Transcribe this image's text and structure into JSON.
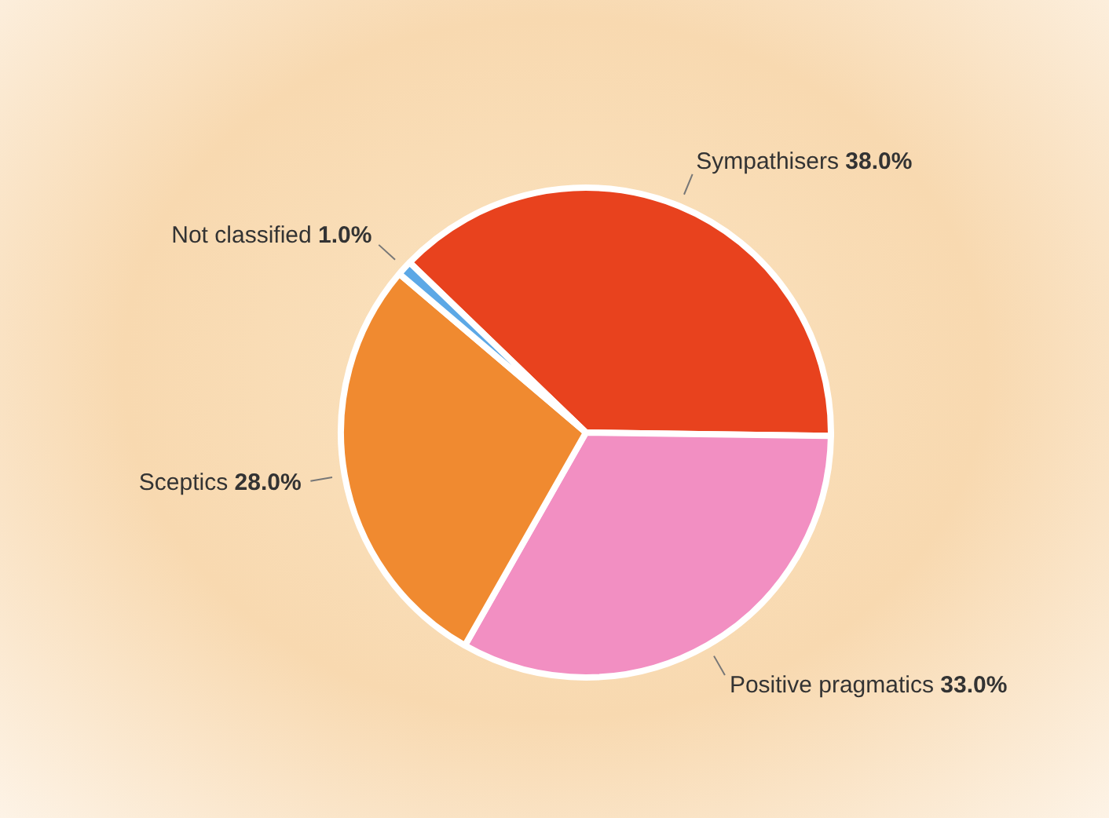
{
  "chart_data": {
    "type": "pie",
    "categories": [
      "Sympathisers",
      "Positive pragmatics",
      "Sceptics",
      "Not classified"
    ],
    "values": [
      38,
      33,
      28,
      1
    ],
    "colors": [
      "#e8421e",
      "#f28fc2",
      "#f08a30",
      "#5ca8e6"
    ],
    "value_labels": [
      "38.0%",
      "33.0%",
      "28.0%",
      "1.0%"
    ],
    "legend": false
  }
}
